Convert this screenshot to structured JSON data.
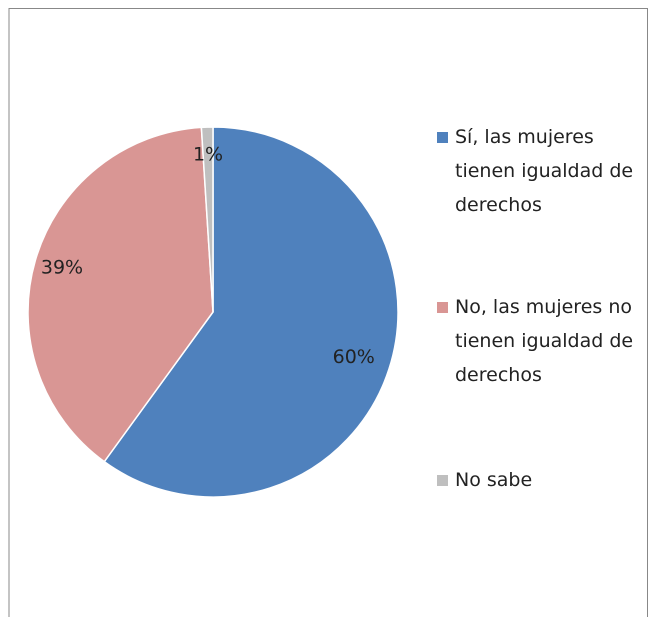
{
  "chart_data": {
    "type": "pie",
    "categories": [
      "Sí, las mujeres tienen igualdad de derechos",
      "No, las mujeres no tienen igualdad de derechos",
      "No sabe"
    ],
    "values": [
      60,
      39,
      1
    ],
    "value_labels": [
      "60%",
      "39%",
      "1%"
    ],
    "colors": [
      "#4f81bd",
      "#d99694",
      "#bfbfbf"
    ],
    "legend": "right"
  }
}
